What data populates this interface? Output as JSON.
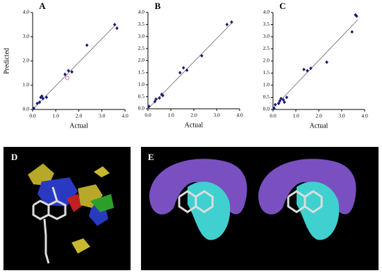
{
  "chart_data": [
    {
      "type": "scatter",
      "title": "A",
      "x_label": "Actual",
      "y_label": "Predicted",
      "xlim": [
        0,
        4
      ],
      "ylim": [
        0,
        4
      ],
      "xticks": [
        {
          "value": 0,
          "label": "0.0"
        },
        {
          "value": 1,
          "label": "1.0"
        },
        {
          "value": 2,
          "label": "2.0"
        },
        {
          "value": 3,
          "label": "3.0"
        },
        {
          "value": 4,
          "label": "4.0"
        }
      ],
      "yticks": [
        {
          "value": 0,
          "label": "0.0"
        },
        {
          "value": 1,
          "label": "1.0"
        },
        {
          "value": 2,
          "label": "2.0"
        },
        {
          "value": 3,
          "label": "3.0"
        },
        {
          "value": 4,
          "label": "4.0"
        }
      ],
      "color": "#1c1c78",
      "x": [
        0.05,
        0.2,
        0.3,
        0.35,
        0.4,
        0.45,
        0.6,
        1.4,
        1.55,
        1.7,
        2.35,
        3.55,
        3.65
      ],
      "y": [
        0.05,
        0.25,
        0.3,
        0.5,
        0.55,
        0.45,
        0.5,
        1.45,
        1.6,
        1.55,
        2.65,
        3.5,
        3.35
      ],
      "test_points": {
        "color": "#e0708a",
        "x": [
          1.5
        ],
        "y": [
          1.3
        ]
      },
      "fit": {
        "color": "#666666",
        "x": [
          0,
          3.6
        ],
        "y": [
          0,
          3.5
        ]
      }
    },
    {
      "type": "scatter",
      "title": "B",
      "x_label": "Actual",
      "xlim": [
        0,
        4
      ],
      "ylim": [
        0,
        4
      ],
      "xticks": [
        {
          "value": 0,
          "label": "0.0"
        },
        {
          "value": 1,
          "label": "1.0"
        },
        {
          "value": 2,
          "label": "2.0"
        },
        {
          "value": 3,
          "label": "3.0"
        },
        {
          "value": 4,
          "label": "4.0"
        }
      ],
      "yticks": [
        {
          "value": 0,
          "label": "0.0"
        },
        {
          "value": 0.5,
          "label": "0.5"
        },
        {
          "value": 1,
          "label": "1.0"
        },
        {
          "value": 1.5,
          "label": "1.5"
        },
        {
          "value": 2,
          "label": "2.0"
        },
        {
          "value": 2.5,
          "label": "2.5"
        },
        {
          "value": 3,
          "label": "3.0"
        },
        {
          "value": 3.5,
          "label": "3.5"
        },
        {
          "value": 4,
          "label": "4.0"
        }
      ],
      "color": "#1c1c78",
      "x": [
        0.05,
        0.3,
        0.35,
        0.5,
        0.6,
        0.65,
        1.4,
        1.55,
        1.7,
        2.35,
        3.45,
        3.65
      ],
      "y": [
        0.1,
        0.3,
        0.4,
        0.45,
        0.6,
        0.55,
        1.5,
        1.7,
        1.6,
        2.2,
        3.5,
        3.6
      ],
      "fit": {
        "color": "#666666",
        "x": [
          0,
          3.7
        ],
        "y": [
          0,
          3.6
        ]
      }
    },
    {
      "type": "scatter",
      "title": "C",
      "x_label": "Actual",
      "xlim": [
        0,
        4
      ],
      "ylim": [
        0,
        4
      ],
      "xticks": [
        {
          "value": 0,
          "label": "0.0"
        },
        {
          "value": 1,
          "label": "1.0"
        },
        {
          "value": 2,
          "label": "2.0"
        },
        {
          "value": 3,
          "label": "3.0"
        },
        {
          "value": 4,
          "label": "4.0"
        }
      ],
      "yticks": [
        {
          "value": 0,
          "label": "0.0"
        },
        {
          "value": 0.5,
          "label": "0.5"
        },
        {
          "value": 1,
          "label": "1.0"
        },
        {
          "value": 1.5,
          "label": "1.5"
        },
        {
          "value": 2,
          "label": "2.0"
        },
        {
          "value": 2.5,
          "label": "2.5"
        },
        {
          "value": 3,
          "label": "3.0"
        },
        {
          "value": 3.5,
          "label": "3.5"
        },
        {
          "value": 4,
          "label": "4.0"
        }
      ],
      "color": "#1c1c78",
      "x": [
        0.05,
        0.1,
        0.25,
        0.3,
        0.35,
        0.45,
        0.5,
        0.6,
        1.35,
        1.5,
        1.65,
        2.35,
        3.45,
        3.6,
        3.65
      ],
      "y": [
        0.05,
        0.2,
        0.25,
        0.35,
        0.45,
        0.4,
        0.3,
        0.5,
        1.65,
        1.6,
        1.7,
        1.95,
        3.2,
        3.9,
        3.85
      ],
      "fit": {
        "color": "#666666",
        "x": [
          0,
          3.7
        ],
        "y": [
          0.05,
          3.7
        ]
      }
    }
  ],
  "panels": [
    {
      "label": "D"
    },
    {
      "label": "E"
    }
  ]
}
